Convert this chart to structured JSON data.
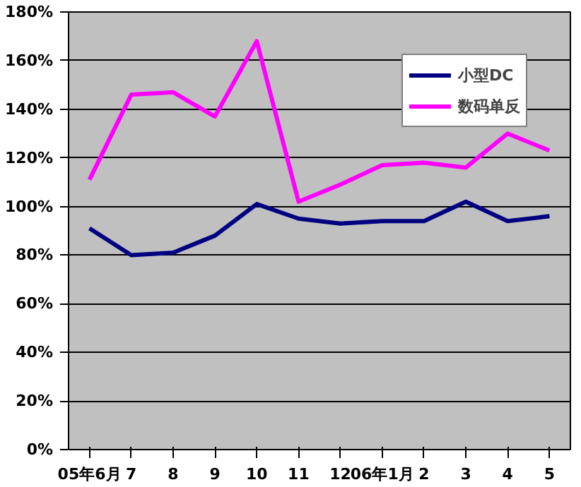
{
  "chart_data": {
    "type": "line",
    "categories": [
      "05年6月",
      "7",
      "8",
      "9",
      "10",
      "11",
      "12",
      "06年1月",
      "2",
      "3",
      "4",
      "5"
    ],
    "series": [
      {
        "name": "小型DC",
        "color": "#000080",
        "values": [
          91,
          80,
          81,
          88,
          101,
          95,
          93,
          94,
          94,
          102,
          94,
          96
        ]
      },
      {
        "name": "数码单反",
        "color": "#ff00ff",
        "values": [
          111,
          146,
          147,
          137,
          168,
          102,
          109,
          117,
          118,
          116,
          130,
          123
        ]
      }
    ],
    "ylim": [
      0,
      180
    ],
    "yticks": [
      {
        "value": 0,
        "label": "0%"
      },
      {
        "value": 20,
        "label": "20%"
      },
      {
        "value": 40,
        "label": "40%"
      },
      {
        "value": 60,
        "label": "60%"
      },
      {
        "value": 80,
        "label": "80%"
      },
      {
        "value": 100,
        "label": "100%"
      },
      {
        "value": 120,
        "label": "120%"
      },
      {
        "value": 140,
        "label": "140%"
      },
      {
        "value": 160,
        "label": "160%"
      },
      {
        "value": 180,
        "label": "180%"
      }
    ],
    "grid": "y",
    "legend": "top right",
    "marker": "none",
    "line_style": "solid"
  }
}
